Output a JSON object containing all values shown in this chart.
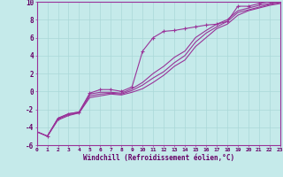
{
  "xlabel": "Windchill (Refroidissement éolien,°C)",
  "xlim": [
    0,
    23
  ],
  "ylim": [
    -6,
    10
  ],
  "xticks": [
    0,
    1,
    2,
    3,
    4,
    5,
    6,
    7,
    8,
    9,
    10,
    11,
    12,
    13,
    14,
    15,
    16,
    17,
    18,
    19,
    20,
    21,
    22,
    23
  ],
  "yticks": [
    -6,
    -4,
    -2,
    0,
    2,
    4,
    6,
    8,
    10
  ],
  "bg_color": "#c5eaea",
  "line_color": "#993399",
  "grid_color": "#aad8d8",
  "curves": [
    {
      "x": [
        1,
        2,
        3,
        4,
        5,
        6,
        7,
        8,
        9,
        10,
        11,
        12,
        13,
        14,
        15,
        16,
        17,
        18,
        19,
        20,
        21,
        22,
        23
      ],
      "y": [
        -5.0,
        -3.0,
        -2.5,
        -2.3,
        -0.2,
        0.2,
        0.2,
        0.0,
        0.5,
        4.5,
        6.0,
        6.7,
        6.8,
        7.0,
        7.2,
        7.4,
        7.5,
        7.8,
        9.5,
        9.5,
        9.8,
        10.0,
        10.0
      ],
      "marker": true
    },
    {
      "x": [
        0,
        1,
        2,
        3,
        4,
        5,
        6,
        7,
        8,
        9,
        10,
        11,
        12,
        13,
        14,
        15,
        16,
        17,
        18,
        19,
        20,
        21,
        22,
        23
      ],
      "y": [
        -4.5,
        -5.0,
        -3.0,
        -2.5,
        -2.3,
        -0.3,
        -0.1,
        -0.1,
        -0.2,
        0.3,
        1.0,
        2.0,
        2.8,
        3.8,
        4.5,
        6.0,
        6.8,
        7.5,
        8.0,
        9.0,
        9.3,
        9.6,
        9.8,
        10.0
      ],
      "marker": false
    },
    {
      "x": [
        0,
        1,
        2,
        3,
        4,
        5,
        6,
        7,
        8,
        9,
        10,
        11,
        12,
        13,
        14,
        15,
        16,
        17,
        18,
        19,
        20,
        21,
        22,
        23
      ],
      "y": [
        -4.5,
        -5.0,
        -3.1,
        -2.6,
        -2.4,
        -0.5,
        -0.3,
        -0.2,
        -0.3,
        0.1,
        0.7,
        1.5,
        2.2,
        3.2,
        4.0,
        5.5,
        6.5,
        7.2,
        7.8,
        8.8,
        9.1,
        9.4,
        9.7,
        9.9
      ],
      "marker": false
    },
    {
      "x": [
        0,
        1,
        2,
        3,
        4,
        5,
        6,
        7,
        8,
        9,
        10,
        11,
        12,
        13,
        14,
        15,
        16,
        17,
        18,
        19,
        20,
        21,
        22,
        23
      ],
      "y": [
        -4.5,
        -5.0,
        -3.2,
        -2.7,
        -2.4,
        -0.7,
        -0.5,
        -0.3,
        -0.4,
        -0.1,
        0.3,
        1.0,
        1.8,
        2.8,
        3.5,
        5.0,
        6.0,
        7.0,
        7.5,
        8.5,
        9.0,
        9.3,
        9.6,
        9.8
      ],
      "marker": false
    }
  ]
}
